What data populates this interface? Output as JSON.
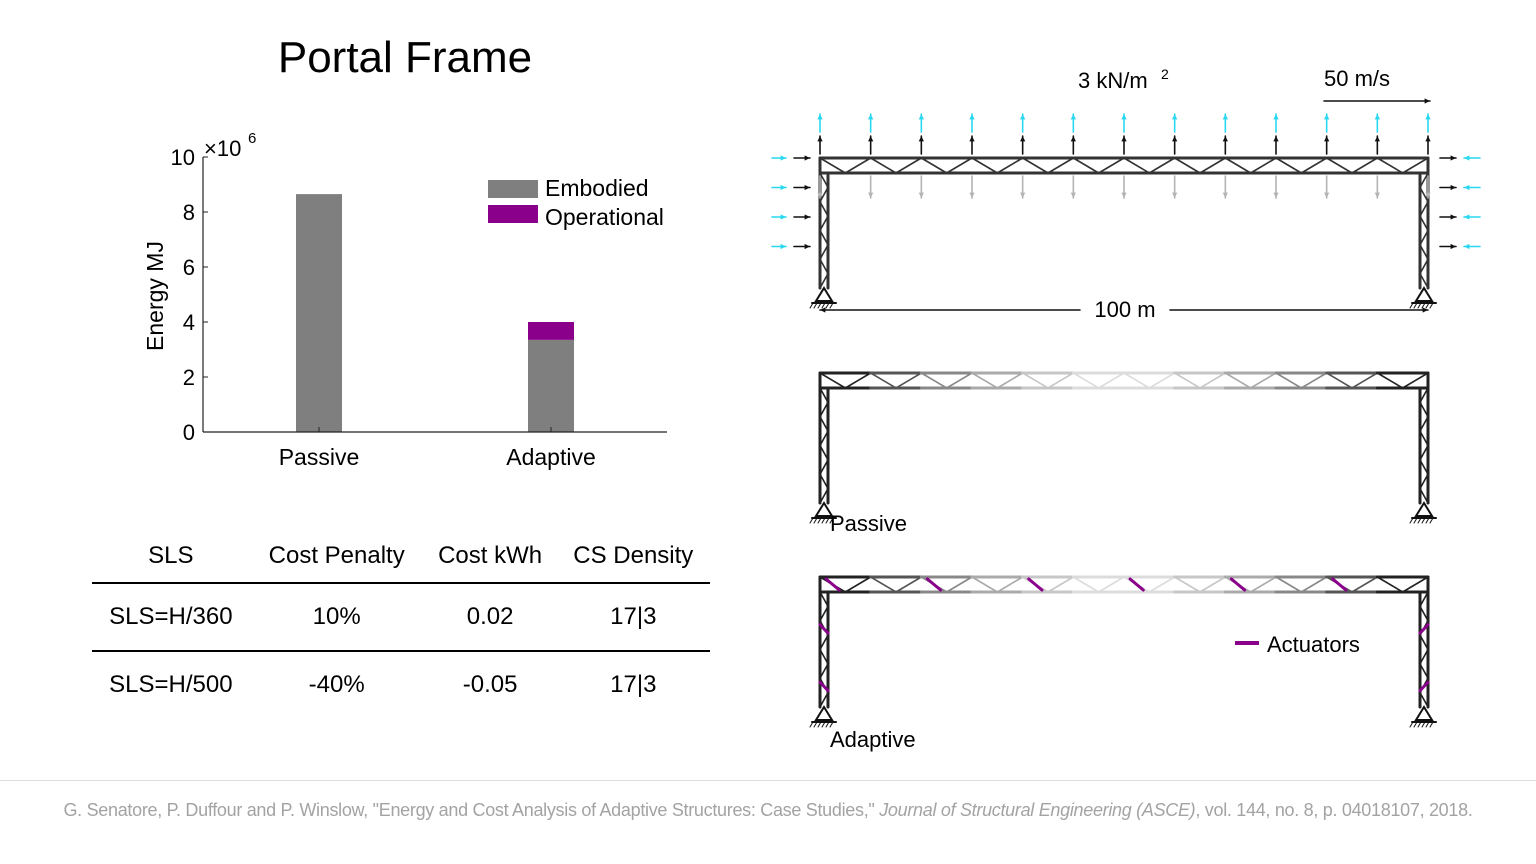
{
  "slide": {
    "title": "Portal Frame",
    "citation_authors": "G. Senatore, P. Duffour and P. Winslow, \"Energy and Cost Analysis of Adaptive Structures: Case Studies,\" ",
    "citation_journal": "Journal of Structural Engineering (ASCE)",
    "citation_tail": ", vol. 144, no. 8, p. 04018107, 2018."
  },
  "chart_data": {
    "type": "bar",
    "stacked": true,
    "categories": [
      "Passive",
      "Adaptive"
    ],
    "series": [
      {
        "name": "Embodied",
        "values": [
          8.65,
          3.35
        ],
        "color": "#7f7f7f"
      },
      {
        "name": "Operational",
        "values": [
          0,
          0.65
        ],
        "color": "#8b008b"
      }
    ],
    "ylabel": "Energy MJ",
    "y_multiplier_base": "×10",
    "y_multiplier_exp": "6",
    "ylim": [
      0,
      10
    ],
    "yticks": [
      0,
      2,
      4,
      6,
      8,
      10
    ],
    "legend_position": "top-right",
    "grid": false
  },
  "table": {
    "headers": [
      "SLS",
      "Cost Penalty",
      "Cost kWh",
      "CS Density"
    ],
    "rows": [
      [
        "SLS=H/360",
        "10%",
        "0.02",
        "17|3"
      ],
      [
        "SLS=H/500",
        "-40%",
        "-0.05",
        "17|3"
      ]
    ]
  },
  "diagram": {
    "load_label": "3 kN/m",
    "load_exp": "2",
    "wind_label": "50 m/s",
    "span_label": "100 m",
    "passive_label": "Passive",
    "adaptive_label": "Adaptive",
    "actuator_legend": "Actuators",
    "colors": {
      "wind_arrow": "#27d8f0",
      "actuator": "#8b008b",
      "frame": "#333333",
      "gravity_arrow": "#b3b3b3"
    }
  }
}
